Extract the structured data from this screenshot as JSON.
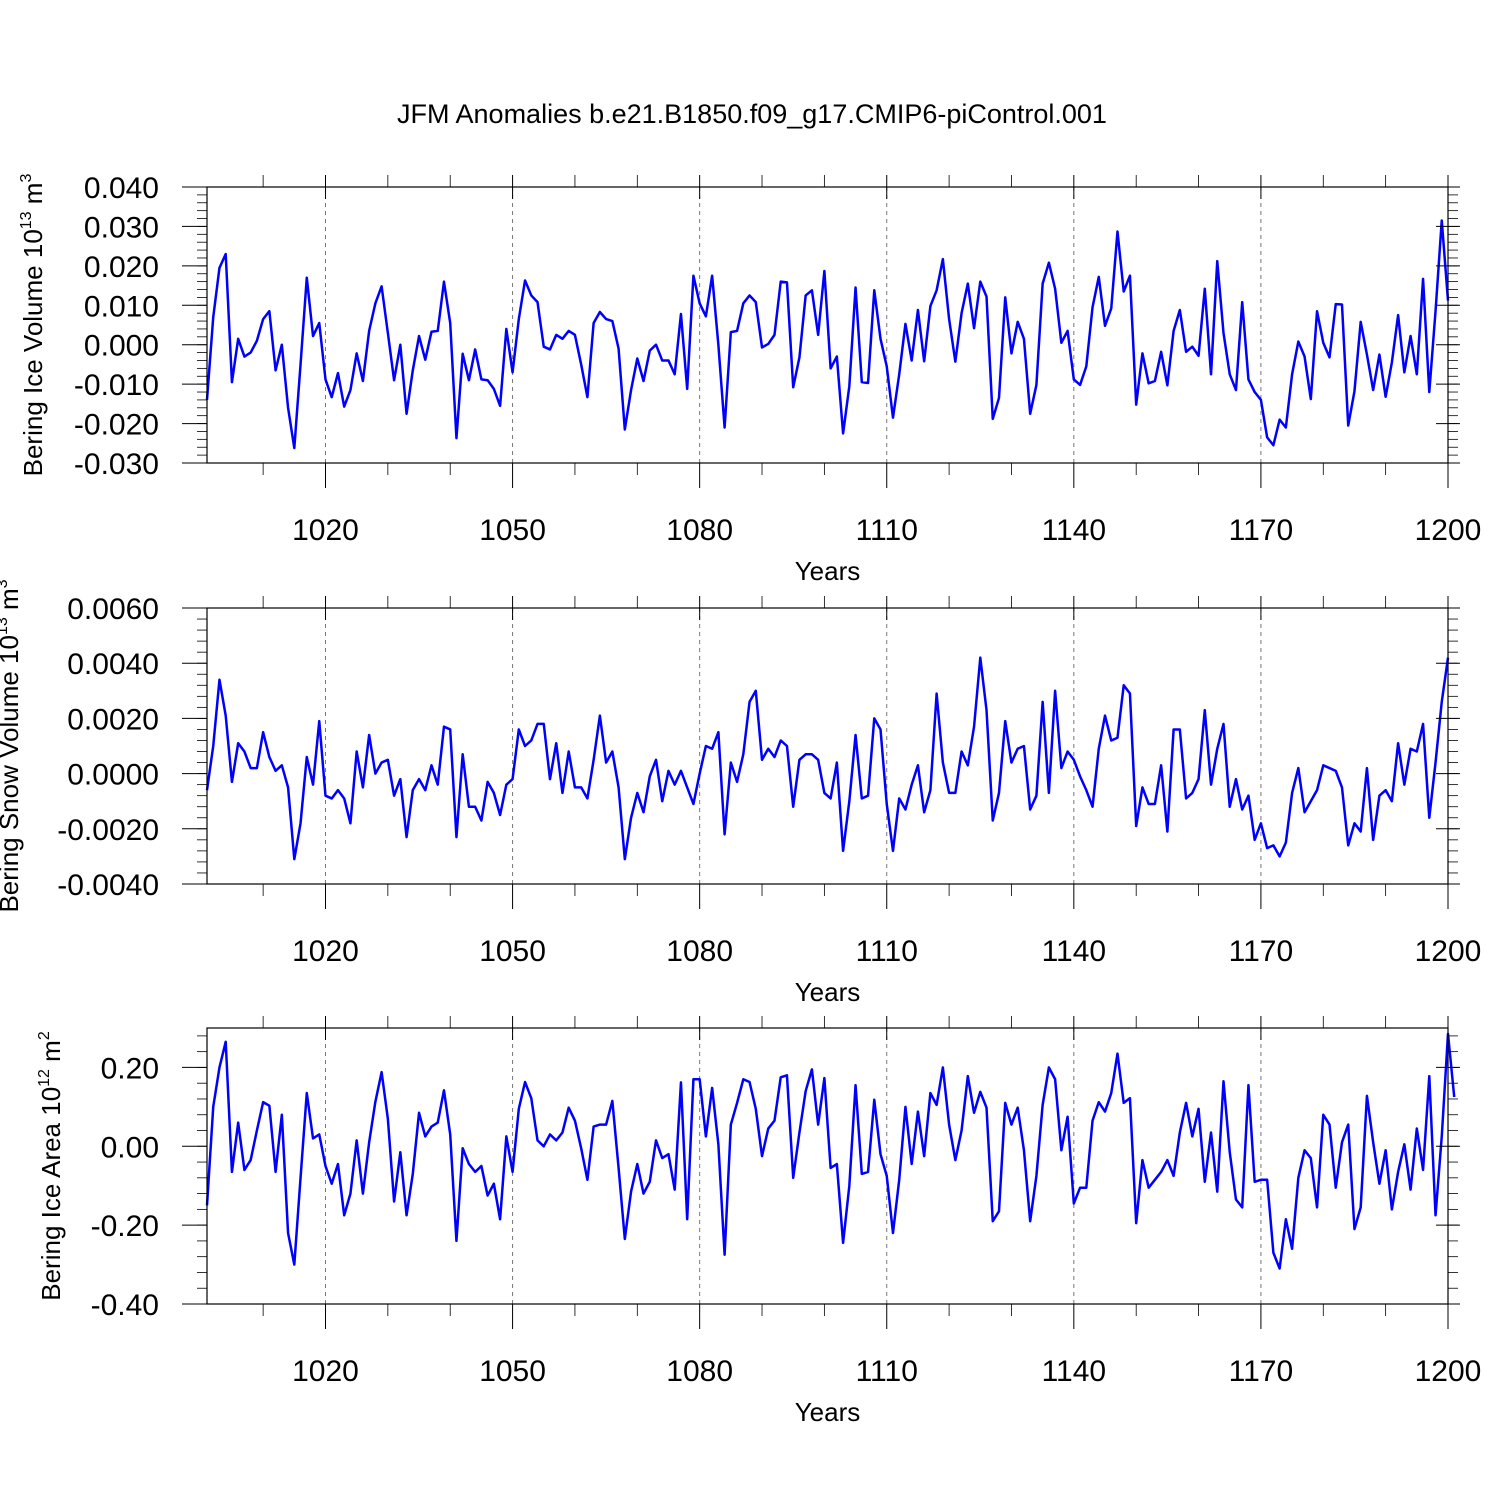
{
  "title": "JFM Anomalies b.e21.B1850.f09_g17.CMIP6-piControl.001",
  "colors": {
    "series": "#0000ff",
    "axes": "#000000",
    "grid": "#777777"
  },
  "chart_data": [
    {
      "type": "line",
      "ylabel_main": "Bering Ice Volume 10",
      "ylabel_exp": "13",
      "ylabel_unit": "m",
      "ylabel_unit_exp": "3",
      "xlabel": "Years",
      "xlim": [
        1001,
        1200
      ],
      "ylim": [
        -0.03,
        0.04
      ],
      "xticks": [
        1020,
        1050,
        1080,
        1110,
        1140,
        1170,
        1200
      ],
      "xtick_labels": [
        "1020",
        "1050",
        "1080",
        "1110",
        "1140",
        "1170",
        "1200"
      ],
      "yticks": [
        -0.03,
        -0.02,
        -0.01,
        0.0,
        0.01,
        0.02,
        0.03,
        0.04
      ],
      "ytick_labels": [
        "-0.030",
        "-0.020",
        "-0.010",
        "0.000",
        "0.010",
        "0.020",
        "0.030",
        "0.040"
      ],
      "x_start": 1001,
      "values": [
        -0.014,
        0.007,
        0.0195,
        0.023,
        -0.0095,
        0.0015,
        -0.003,
        -0.002,
        0.001,
        0.0065,
        0.0085,
        -0.0065,
        0.0,
        -0.016,
        -0.0262,
        -0.005,
        0.017,
        0.0022,
        0.0055,
        -0.0088,
        -0.0133,
        -0.0072,
        -0.0157,
        -0.0115,
        -0.0022,
        -0.0092,
        0.0035,
        0.0105,
        0.0148,
        0.003,
        -0.009,
        0.0,
        -0.0175,
        -0.0065,
        0.0022,
        -0.0038,
        0.0033,
        0.0035,
        0.016,
        0.0055,
        -0.0237,
        -0.0023,
        -0.009,
        -0.0012,
        -0.0088,
        -0.009,
        -0.0112,
        -0.0155,
        0.004,
        -0.007,
        0.0065,
        0.0163,
        0.0125,
        0.0108,
        -0.0005,
        -0.0012,
        0.0025,
        0.0015,
        0.0035,
        0.0025,
        -0.005,
        -0.0133,
        0.0055,
        0.0083,
        0.0065,
        0.006,
        -0.001,
        -0.0215,
        -0.0115,
        -0.0035,
        -0.0092,
        -0.0015,
        0.0,
        -0.004,
        -0.004,
        -0.0075,
        0.0078,
        -0.0112,
        0.0175,
        0.0105,
        0.0072,
        0.0175,
        0.0,
        -0.021,
        0.0032,
        0.0035,
        0.0105,
        0.0125,
        0.0108,
        -0.0007,
        0.0002,
        0.0025,
        0.016,
        0.0158,
        -0.0108,
        -0.0032,
        0.0125,
        0.0138,
        0.0025,
        0.0187,
        -0.006,
        -0.003,
        -0.0225,
        -0.0105,
        0.0145,
        -0.0095,
        -0.0097,
        0.0138,
        0.0015,
        -0.0055,
        -0.0185,
        -0.0075,
        0.0053,
        -0.004,
        0.0088,
        -0.0042,
        0.0098,
        0.0138,
        0.0217,
        0.0065,
        -0.0043,
        0.008,
        0.0155,
        0.0042,
        0.016,
        0.0122,
        -0.0188,
        -0.0135,
        0.012,
        -0.0022,
        0.0058,
        0.0015,
        -0.0175,
        -0.0102,
        0.0155,
        0.0208,
        0.0142,
        0.0005,
        0.0035,
        -0.0088,
        -0.0102,
        -0.0055,
        0.0095,
        0.0172,
        0.0048,
        0.0092,
        0.0287,
        0.0135,
        0.0175,
        -0.0152,
        -0.0022,
        -0.0098,
        -0.0092,
        -0.0018,
        -0.0103,
        0.0035,
        0.0088,
        -0.0018,
        -0.0005,
        -0.0028,
        0.0142,
        -0.0075,
        0.0212,
        0.003,
        -0.0075,
        -0.0115,
        0.0108,
        -0.0088,
        -0.012,
        -0.014,
        -0.0235,
        -0.0255,
        -0.019,
        -0.021,
        -0.0075,
        0.0008,
        -0.003,
        -0.0138,
        0.0085,
        0.0005,
        -0.0032,
        0.0103,
        0.0102,
        -0.0205,
        -0.0118,
        0.0058,
        -0.0025,
        -0.0115,
        -0.0025,
        -0.0132,
        -0.0045,
        0.0075,
        -0.007,
        0.0022,
        -0.0075,
        0.0167,
        -0.012,
        0.0085,
        0.0315,
        0.0112
      ]
    },
    {
      "type": "line",
      "ylabel_main": "Bering Snow Volume 10",
      "ylabel_exp": "13",
      "ylabel_unit": "m",
      "ylabel_unit_exp": "3",
      "xlabel": "Years",
      "xlim": [
        1001,
        1200
      ],
      "ylim": [
        -0.004,
        0.006
      ],
      "xticks": [
        1020,
        1050,
        1080,
        1110,
        1140,
        1170,
        1200
      ],
      "xtick_labels": [
        "1020",
        "1050",
        "1080",
        "1110",
        "1140",
        "1170",
        "1200"
      ],
      "yticks": [
        -0.004,
        -0.002,
        0.0,
        0.002,
        0.004,
        0.006
      ],
      "ytick_labels": [
        "-0.0040",
        "-0.0020",
        "0.0000",
        "0.0020",
        "0.0040",
        "0.0060"
      ],
      "x_start": 1001,
      "values": [
        -0.0006,
        0.001,
        0.0034,
        0.0021,
        -0.0003,
        0.0011,
        0.0008,
        0.0002,
        0.0002,
        0.0015,
        0.0006,
        0.0001,
        0.0003,
        -0.0005,
        -0.0031,
        -0.0018,
        0.0006,
        -0.0004,
        0.0019,
        -0.0008,
        -0.0009,
        -0.0006,
        -0.0009,
        -0.0018,
        0.0008,
        -0.0005,
        0.0014,
        0.0,
        0.0004,
        0.0005,
        -0.0008,
        -0.0002,
        -0.0023,
        -0.0006,
        -0.0002,
        -0.0006,
        0.0003,
        -0.0004,
        0.0017,
        0.0016,
        -0.0023,
        0.0007,
        -0.0012,
        -0.0012,
        -0.0017,
        -0.0003,
        -0.0007,
        -0.0015,
        -0.0004,
        -0.0002,
        0.0016,
        0.001,
        0.0012,
        0.0018,
        0.0018,
        -0.0002,
        0.0011,
        -0.0007,
        0.0008,
        -0.0005,
        -0.0005,
        -0.0009,
        0.0005,
        0.0021,
        0.0004,
        0.0008,
        -0.0005,
        -0.0031,
        -0.0016,
        -0.0007,
        -0.0014,
        -0.0001,
        0.0005,
        -0.001,
        0.0001,
        -0.0004,
        0.0001,
        -0.0005,
        -0.0011,
        0.0,
        0.001,
        0.0009,
        0.0015,
        -0.0022,
        0.0004,
        -0.0003,
        0.0007,
        0.0026,
        0.003,
        0.0005,
        0.0009,
        0.0006,
        0.0012,
        0.001,
        -0.0012,
        0.0005,
        0.0007,
        0.0007,
        0.0005,
        -0.0007,
        -0.0009,
        0.0004,
        -0.0028,
        -0.001,
        0.0014,
        -0.0009,
        -0.0008,
        0.002,
        0.0016,
        -0.0011,
        -0.0028,
        -0.0009,
        -0.0013,
        -0.0004,
        0.0003,
        -0.0014,
        -0.0006,
        0.0029,
        0.0004,
        -0.0007,
        -0.0007,
        0.0008,
        0.0003,
        0.0017,
        0.0042,
        0.0023,
        -0.0017,
        -0.0007,
        0.0019,
        0.0004,
        0.0009,
        0.001,
        -0.0013,
        -0.0008,
        0.0026,
        -0.0007,
        0.003,
        0.0002,
        0.0008,
        0.0005,
        -0.0001,
        -0.0006,
        -0.0012,
        0.0009,
        0.0021,
        0.0012,
        0.0013,
        0.0032,
        0.0029,
        -0.0019,
        -0.0005,
        -0.0011,
        -0.0011,
        0.0003,
        -0.0021,
        0.0016,
        0.0016,
        -0.0009,
        -0.0007,
        -0.0002,
        0.0023,
        -0.0004,
        0.0009,
        0.0018,
        -0.0012,
        -0.0002,
        -0.0013,
        -0.0008,
        -0.0024,
        -0.0018,
        -0.0027,
        -0.0026,
        -0.003,
        -0.0025,
        -0.0007,
        0.0002,
        -0.0014,
        -0.001,
        -0.0006,
        0.0003,
        0.0002,
        0.0001,
        -0.0005,
        -0.0026,
        -0.0018,
        -0.0021,
        0.0002,
        -0.0024,
        -0.0008,
        -0.0006,
        -0.001,
        0.0011,
        -0.0004,
        0.0009,
        0.0008,
        0.0018,
        -0.0016,
        0.0004,
        0.0026,
        0.0042
      ]
    },
    {
      "type": "line",
      "ylabel_main": "Bering Ice Area 10",
      "ylabel_exp": "12",
      "ylabel_unit": "m",
      "ylabel_unit_exp": "2",
      "xlabel": "Years",
      "xlim": [
        1001,
        1200
      ],
      "ylim": [
        -0.4,
        0.3
      ],
      "xticks": [
        1020,
        1050,
        1080,
        1110,
        1140,
        1170,
        1200
      ],
      "xtick_labels": [
        "1020",
        "1050",
        "1080",
        "1110",
        "1140",
        "1170",
        "1200"
      ],
      "yticks": [
        -0.4,
        -0.2,
        0.0,
        0.2
      ],
      "ytick_labels": [
        "-0.40",
        "-0.20",
        "0.00",
        "0.20"
      ],
      "x_start": 1001,
      "values": [
        -0.15,
        0.1,
        0.2,
        0.265,
        -0.065,
        0.06,
        -0.06,
        -0.035,
        0.04,
        0.112,
        0.103,
        -0.065,
        0.08,
        -0.22,
        -0.3,
        -0.08,
        0.135,
        0.02,
        0.03,
        -0.05,
        -0.095,
        -0.045,
        -0.175,
        -0.12,
        0.015,
        -0.12,
        0.01,
        0.113,
        0.188,
        0.07,
        -0.14,
        -0.015,
        -0.175,
        -0.07,
        0.085,
        0.025,
        0.05,
        0.06,
        0.142,
        0.03,
        -0.24,
        -0.005,
        -0.045,
        -0.065,
        -0.05,
        -0.125,
        -0.095,
        -0.185,
        0.025,
        -0.065,
        0.095,
        0.163,
        0.122,
        0.015,
        0.0,
        0.03,
        0.015,
        0.035,
        0.098,
        0.065,
        -0.005,
        -0.085,
        0.05,
        0.055,
        0.055,
        0.115,
        -0.055,
        -0.235,
        -0.115,
        -0.045,
        -0.12,
        -0.09,
        0.015,
        -0.03,
        -0.02,
        -0.11,
        0.162,
        -0.185,
        0.17,
        0.17,
        0.025,
        0.148,
        0.005,
        -0.275,
        0.055,
        0.11,
        0.17,
        0.163,
        0.095,
        -0.025,
        0.045,
        0.065,
        0.175,
        0.18,
        -0.08,
        0.035,
        0.14,
        0.195,
        0.055,
        0.173,
        -0.055,
        -0.045,
        -0.245,
        -0.1,
        0.155,
        -0.07,
        -0.065,
        0.118,
        -0.02,
        -0.075,
        -0.22,
        -0.085,
        0.1,
        -0.045,
        0.088,
        -0.025,
        0.135,
        0.105,
        0.2,
        0.055,
        -0.035,
        0.04,
        0.178,
        0.085,
        0.138,
        0.098,
        -0.19,
        -0.165,
        0.11,
        0.055,
        0.098,
        -0.01,
        -0.19,
        -0.075,
        0.105,
        0.2,
        0.17,
        -0.01,
        0.075,
        -0.145,
        -0.105,
        -0.105,
        0.065,
        0.112,
        0.088,
        0.135,
        0.235,
        0.11,
        0.122,
        -0.195,
        -0.035,
        -0.105,
        -0.085,
        -0.065,
        -0.035,
        -0.075,
        0.035,
        0.11,
        0.025,
        0.095,
        -0.09,
        0.035,
        -0.115,
        0.165,
        -0.015,
        -0.135,
        -0.155,
        0.155,
        -0.09,
        -0.085,
        -0.085,
        -0.27,
        -0.31,
        -0.185,
        -0.26,
        -0.08,
        -0.01,
        -0.03,
        -0.155,
        0.08,
        0.055,
        -0.105,
        0.01,
        0.055,
        -0.21,
        -0.155,
        0.128,
        0.01,
        -0.095,
        -0.01,
        -0.16,
        -0.065,
        0.005,
        -0.11,
        0.045,
        -0.06,
        0.178,
        -0.175,
        0.025,
        0.285,
        0.125
      ]
    }
  ]
}
